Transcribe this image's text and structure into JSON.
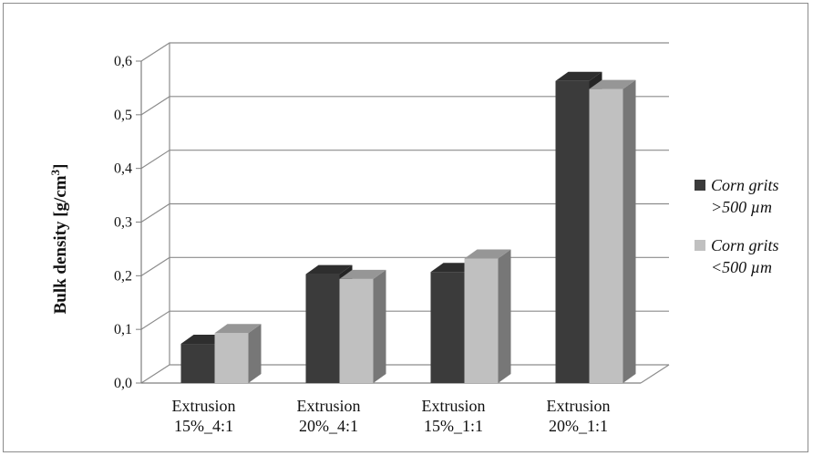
{
  "chart_data": {
    "type": "bar",
    "style": "3d-clustered",
    "categories": [
      [
        "Extrusion",
        "15%_4:1"
      ],
      [
        "Extrusion",
        "20%_4:1"
      ],
      [
        "Extrusion",
        "15%_1:1"
      ],
      [
        "Extrusion",
        "20%_1:1"
      ]
    ],
    "series": [
      {
        "name": [
          "Corn grits",
          ">500 µm"
        ],
        "values": [
          0.073,
          0.203,
          0.207,
          0.563
        ],
        "color": "#3b3b3b"
      },
      {
        "name": [
          "Corn grits",
          "<500 µm"
        ],
        "values": [
          0.093,
          0.194,
          0.232,
          0.548
        ],
        "color": "#c0c0c0"
      }
    ],
    "ylabel": "Bulk density [g/cm³]",
    "ylim": [
      0,
      0.6
    ],
    "yticks": [
      "0,0",
      "0,1",
      "0,2",
      "0,3",
      "0,4",
      "0,5",
      "0,6"
    ],
    "grid": true,
    "legend_position": "right",
    "colors": {
      "wall_line": "#8c8c8c",
      "axis_line": "#7f7f7f"
    }
  }
}
